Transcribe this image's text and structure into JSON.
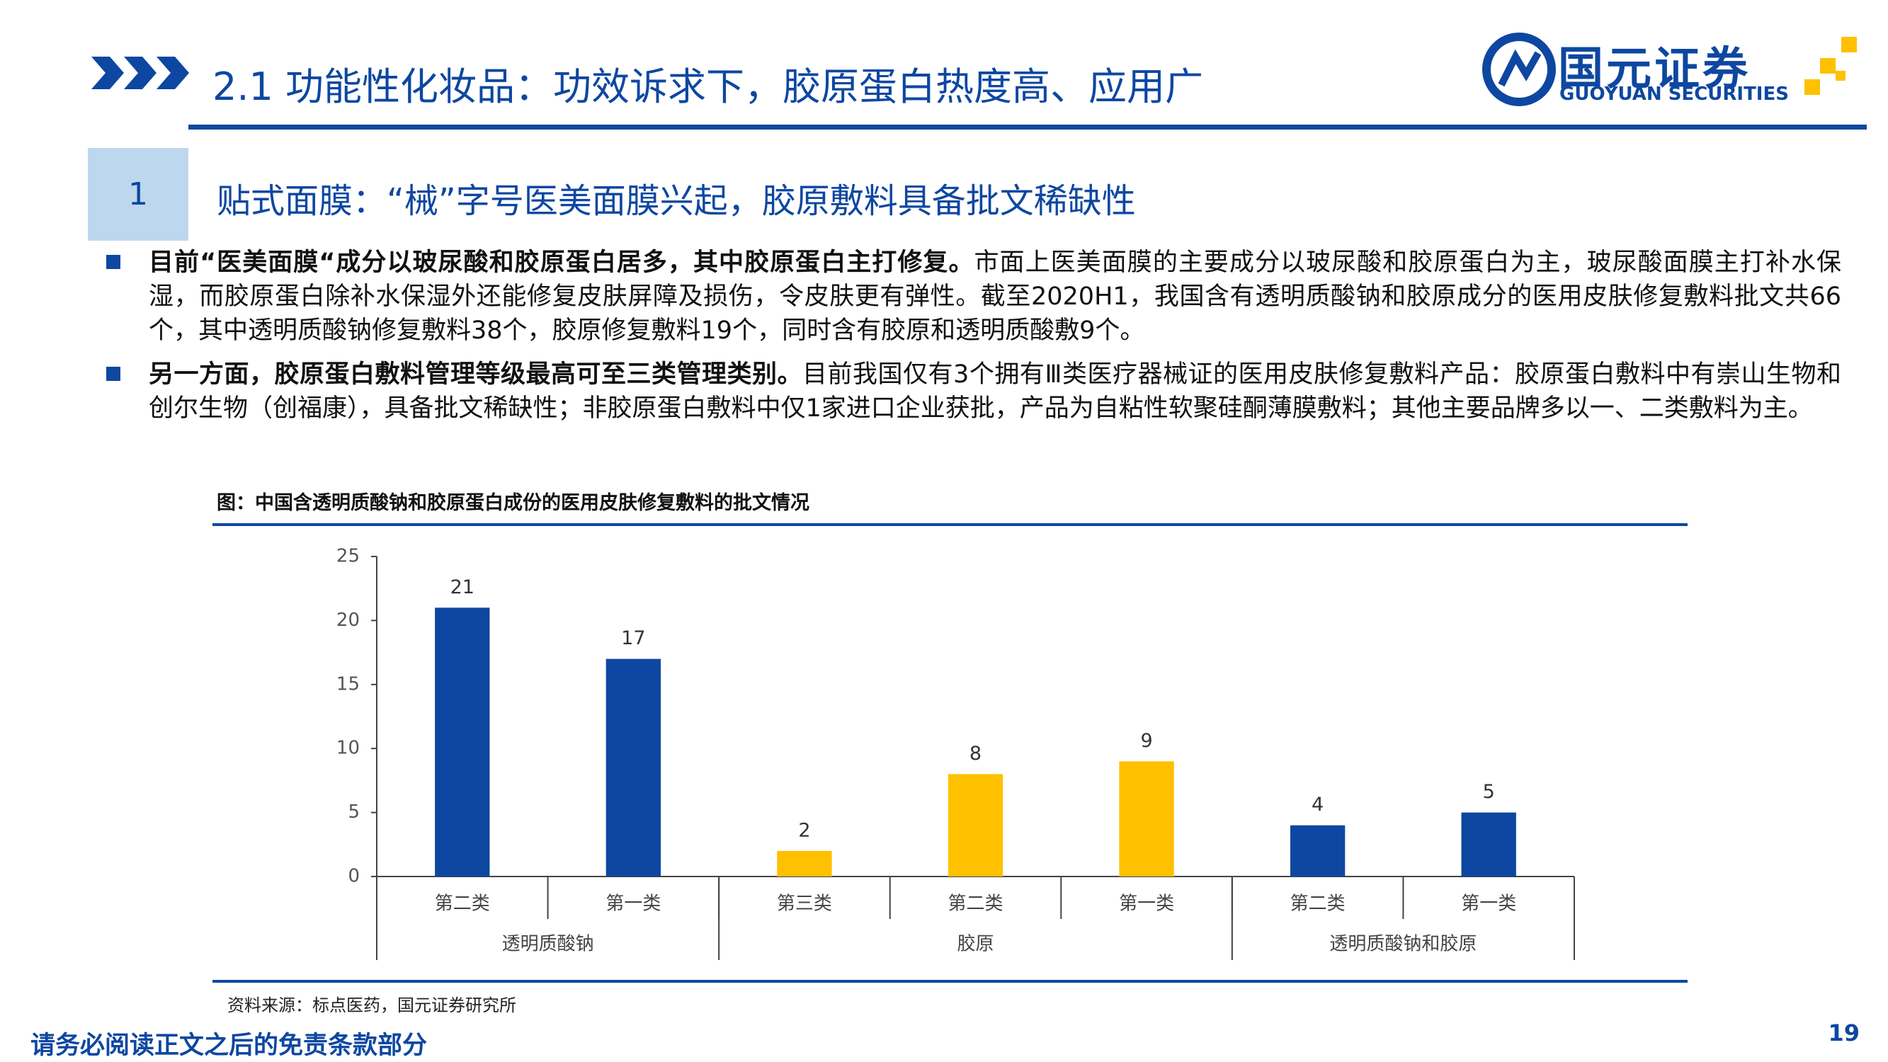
{
  "header": {
    "title": "2.1 功能性化妆品：功效诉求下，胶原蛋白热度高、应用广",
    "logo": {
      "name": "国元证券",
      "en": "GUOYUAN SECURITIES"
    }
  },
  "section": {
    "number": "1",
    "title": "贴式面膜：“械”字号医美面膜兴起，胶原敷料具备批文稀缺性"
  },
  "bullets": [
    {
      "bold": "目前“医美面膜“成分以玻尿酸和胶原蛋白居多，其中胶原蛋白主打修复。",
      "text": "市面上医美面膜的主要成分以玻尿酸和胶原蛋白为主，玻尿酸面膜主打补水保湿，而胶原蛋白除补水保湿外还能修复皮肤屏障及损伤，令皮肤更有弹性。截至2020H1，我国含有透明质酸钠和胶原成分的医用皮肤修复敷料批文共66个，其中透明质酸钠修复敷料38个，胶原修复敷料19个，同时含有胶原和透明质酸敷9个。"
    },
    {
      "bold": "另一方面，胶原蛋白敷料管理等级最高可至三类管理类别。",
      "text": "目前我国仅有3个拥有Ⅲ类医疗器械证的医用皮肤修复敷料产品：胶原蛋白敷料中有崇山生物和创尔生物（创福康），具备批文稀缺性；非胶原蛋白敷料中仅1家进口企业获批，产品为自粘性软聚硅酮薄膜敷料；其他主要品牌多以一、二类敷料为主。"
    }
  ],
  "chart_data": {
    "type": "bar",
    "title": "图：中国含透明质酸钠和胶原蛋白成份的医用皮肤修复敷料的批文情况",
    "categories": [
      "第二类",
      "第一类",
      "第三类",
      "第二类",
      "第一类",
      "第二类",
      "第一类"
    ],
    "groups": [
      {
        "name": "透明质酸钠",
        "count": 2
      },
      {
        "name": "胶原",
        "count": 3
      },
      {
        "name": "透明质酸钠和胶原",
        "count": 2
      }
    ],
    "values": [
      21,
      17,
      2,
      8,
      9,
      4,
      5
    ],
    "colors": [
      "#0d47a1",
      "#0d47a1",
      "#ffc000",
      "#ffc000",
      "#ffc000",
      "#0d47a1",
      "#0d47a1"
    ],
    "ylim": [
      0,
      25
    ],
    "yticks": [
      0,
      5,
      10,
      15,
      20,
      25
    ],
    "grid": false,
    "source": "资料来源：标点医药，国元证券研究所"
  },
  "footer": {
    "disclaimer": "请务必阅读正文之后的免责条款部分",
    "page": "19"
  }
}
